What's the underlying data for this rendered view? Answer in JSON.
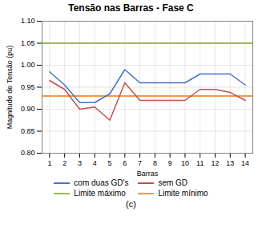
{
  "chart_data": {
    "type": "line",
    "title": "Tensão nas Barras - Fase C",
    "subtitle": "(c)",
    "x_label": "Barras",
    "y_label": "Magnitude de Tensão (pu)",
    "x": [
      1,
      2,
      3,
      4,
      5,
      6,
      7,
      8,
      9,
      10,
      11,
      12,
      13,
      14
    ],
    "series": [
      {
        "name": "com duas GD's",
        "color": "#4472C4",
        "values": [
          0.985,
          0.955,
          0.915,
          0.915,
          0.935,
          0.99,
          0.96,
          0.96,
          0.96,
          0.96,
          0.98,
          0.98,
          0.98,
          0.955
        ]
      },
      {
        "name": "sem GD",
        "color": "#C0504D",
        "values": [
          0.965,
          0.945,
          0.9,
          0.905,
          0.875,
          0.96,
          0.92,
          0.92,
          0.92,
          0.92,
          0.945,
          0.945,
          0.938,
          0.92
        ]
      },
      {
        "name": "Limite máximo",
        "color": "#9BBB59",
        "type": "rule",
        "y": 1.05
      },
      {
        "name": "Limite mínimo",
        "color": "#F79646",
        "type": "rule",
        "y": 0.93
      }
    ],
    "xlim": [
      0.5,
      14.5
    ],
    "xticks": [
      1,
      2,
      3,
      4,
      5,
      6,
      7,
      8,
      9,
      10,
      11,
      12,
      13,
      14
    ],
    "ylim": [
      0.8,
      1.1
    ],
    "yticks": [
      {
        "value": 0.8,
        "label": "0.80"
      },
      0.85,
      {
        "value": 0.9,
        "label": "0.90"
      },
      0.95,
      {
        "value": 1.0,
        "label": "1.00"
      },
      1.05,
      {
        "value": 1.1,
        "label": "1.10"
      }
    ],
    "grid": true,
    "legend": "bottom"
  }
}
